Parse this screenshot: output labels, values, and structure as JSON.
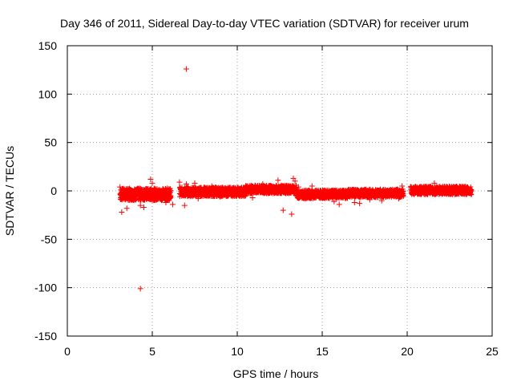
{
  "chart_data": {
    "type": "scatter",
    "title": "Day 346 of 2011, Sidereal Day-to-day VTEC variation (SDTVAR) for receiver urum",
    "xlabel": "GPS time / hours",
    "ylabel": "SDTVAR / TECUs",
    "xlim": [
      0,
      25
    ],
    "ylim": [
      -150,
      150
    ],
    "xticks": [
      0,
      5,
      10,
      15,
      20,
      25
    ],
    "yticks": [
      -150,
      -100,
      -50,
      0,
      50,
      100,
      150
    ],
    "grid": true,
    "marker": "+",
    "series_color": "#ff0000",
    "bands": [
      {
        "x0": 3.1,
        "x1": 6.1,
        "ylo": -10,
        "yhi": 3
      },
      {
        "x0": 6.6,
        "x1": 10.5,
        "ylo": -6,
        "yhi": 4
      },
      {
        "x0": 10.5,
        "x1": 13.5,
        "ylo": -3,
        "yhi": 6
      },
      {
        "x0": 13.5,
        "x1": 16.5,
        "ylo": -8,
        "yhi": 1
      },
      {
        "x0": 16.5,
        "x1": 19.8,
        "ylo": -7,
        "yhi": 2
      },
      {
        "x0": 20.2,
        "x1": 23.8,
        "ylo": -4,
        "yhi": 5
      }
    ],
    "points": [
      [
        7.0,
        126
      ],
      [
        4.3,
        -101
      ],
      [
        13.2,
        -24
      ],
      [
        3.2,
        -22
      ],
      [
        3.5,
        -18
      ],
      [
        4.3,
        -15
      ],
      [
        4.5,
        -17
      ],
      [
        4.9,
        12
      ],
      [
        5.0,
        8
      ],
      [
        6.2,
        -14
      ],
      [
        6.6,
        9
      ],
      [
        7.0,
        7
      ],
      [
        7.5,
        8
      ],
      [
        6.9,
        -15
      ],
      [
        12.4,
        11
      ],
      [
        13.3,
        13
      ],
      [
        13.4,
        10
      ],
      [
        13.6,
        4
      ],
      [
        14.0,
        -8
      ],
      [
        14.4,
        5
      ],
      [
        16.0,
        -14
      ],
      [
        16.9,
        -12
      ],
      [
        17.2,
        -13
      ],
      [
        17.8,
        -9
      ],
      [
        19.5,
        -8
      ],
      [
        19.7,
        5
      ],
      [
        21.6,
        8
      ],
      [
        22.2,
        4
      ],
      [
        23.0,
        -2
      ],
      [
        12.7,
        -20
      ],
      [
        10.9,
        -7
      ],
      [
        18.5,
        -10
      ],
      [
        15.7,
        -11
      ],
      [
        9.0,
        -6
      ],
      [
        7.7,
        -8
      ],
      [
        5.8,
        -12
      ],
      [
        3.3,
        -5
      ],
      [
        3.1,
        4
      ],
      [
        8.5,
        5
      ],
      [
        11.5,
        7
      ]
    ]
  }
}
